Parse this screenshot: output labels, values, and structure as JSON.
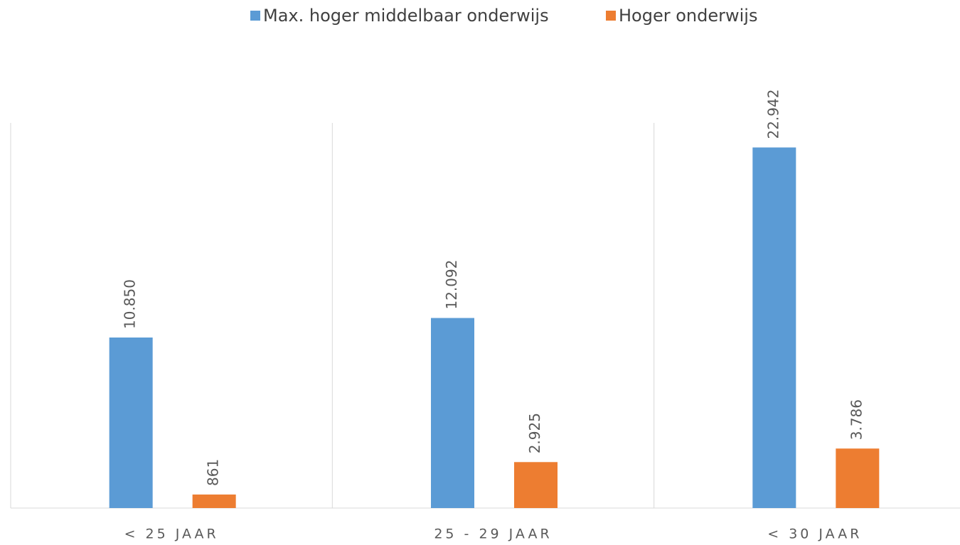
{
  "chart_data": {
    "type": "bar",
    "categories": [
      "< 25 JAAR",
      "25 - 29 JAAR",
      "< 30 JAAR"
    ],
    "series": [
      {
        "name": "Max. hoger middelbaar onderwijs",
        "color": "#5b9bd5",
        "values": [
          10850,
          12092,
          22942
        ],
        "value_labels": [
          "10.850",
          "12.092",
          "22.942"
        ]
      },
      {
        "name": "Hoger onderwijs",
        "color": "#ed7d31",
        "values": [
          861,
          2925,
          3786
        ],
        "value_labels": [
          "861",
          "2.925",
          "3.786"
        ]
      }
    ],
    "ylim": [
      0,
      25000
    ],
    "legend": "top"
  }
}
